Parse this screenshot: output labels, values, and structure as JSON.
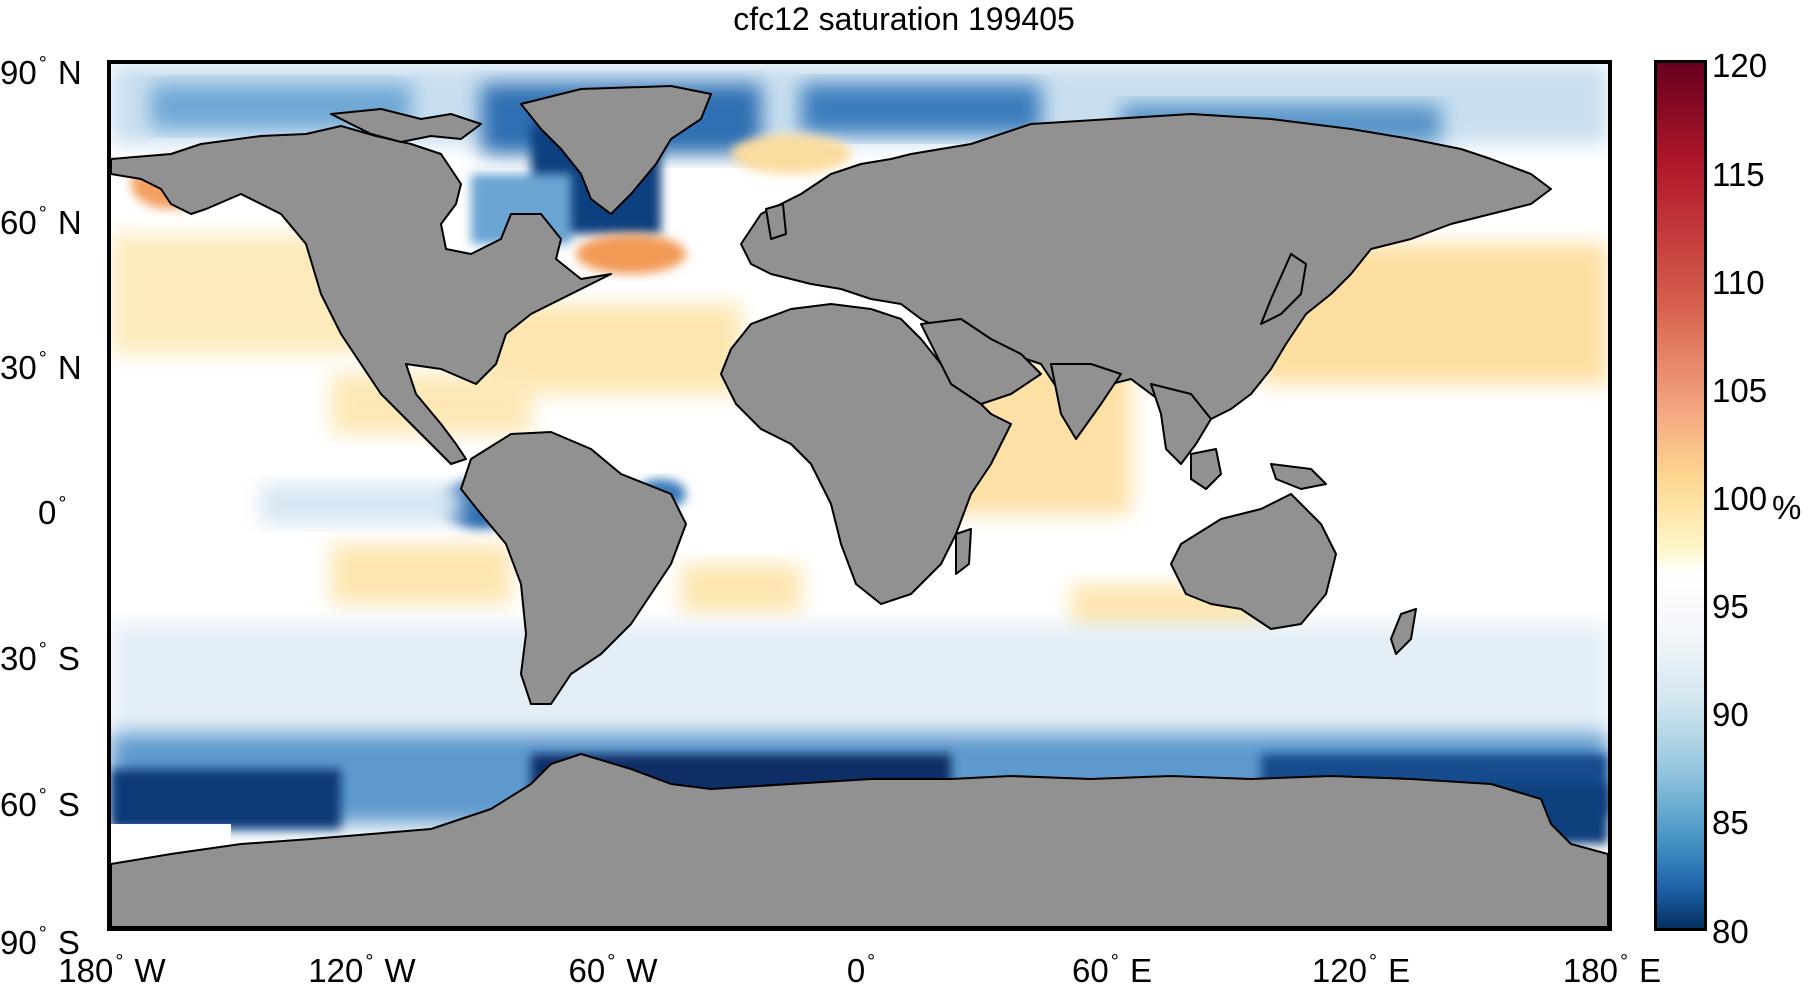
{
  "title": "cfc12 saturation 199405",
  "lat_labels": [
    {
      "deg": "90",
      "hemi": "N"
    },
    {
      "deg": "60",
      "hemi": "N"
    },
    {
      "deg": "30",
      "hemi": "N"
    },
    {
      "deg": "0",
      "hemi": ""
    },
    {
      "deg": "30",
      "hemi": "S"
    },
    {
      "deg": "60",
      "hemi": "S"
    },
    {
      "deg": "90",
      "hemi": "S"
    }
  ],
  "lon_labels": [
    {
      "deg": "180",
      "hemi": "W"
    },
    {
      "deg": "120",
      "hemi": "W"
    },
    {
      "deg": "60",
      "hemi": "W"
    },
    {
      "deg": "0",
      "hemi": ""
    },
    {
      "deg": "60",
      "hemi": "E"
    },
    {
      "deg": "120",
      "hemi": "E"
    },
    {
      "deg": "180",
      "hemi": "E"
    }
  ],
  "colorbar": {
    "ticks": [
      "120",
      "115",
      "110",
      "105",
      "100",
      "95",
      "90",
      "85",
      "80"
    ],
    "unit": "%",
    "range": [
      80,
      120
    ],
    "colors": {
      "high": "#67001f",
      "mid_high": "#f4a582",
      "neutral": "#ffffff",
      "mid_low": "#92c5de",
      "low": "#053061"
    }
  },
  "land_color": "#919191",
  "coastline_color": "#000000"
}
